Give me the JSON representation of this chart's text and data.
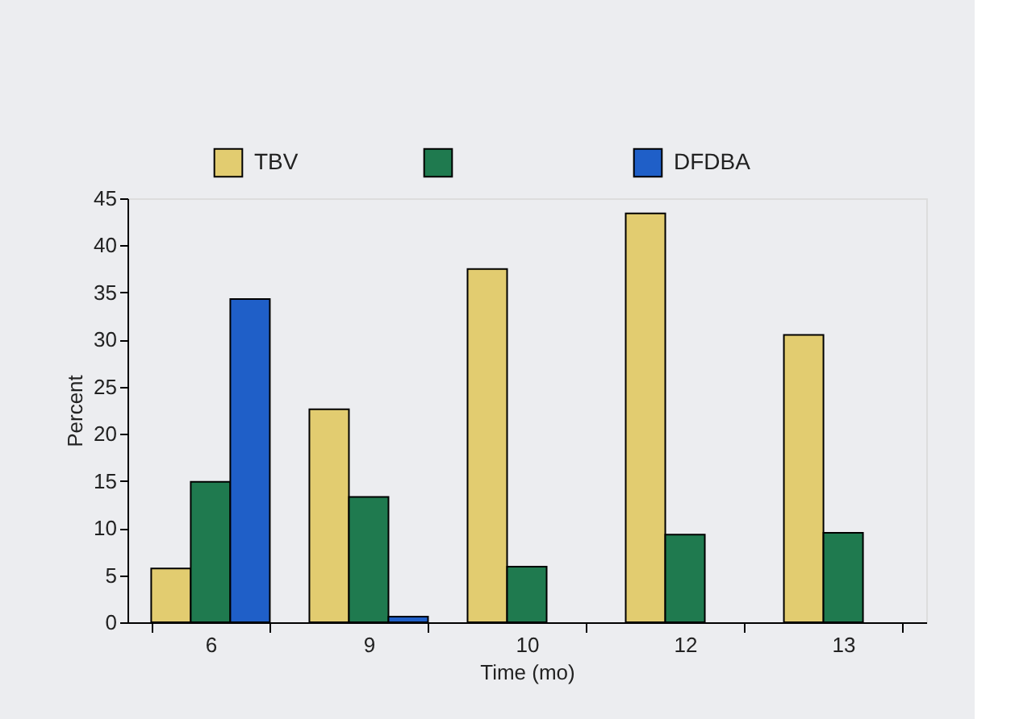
{
  "chart_data": {
    "type": "bar",
    "xlabel": "Time (mo)",
    "ylabel": "Percent",
    "categories": [
      "6",
      "9",
      "10",
      "12",
      "13"
    ],
    "series": [
      {
        "name": "TBV",
        "color": "#e2cc70",
        "values": [
          5.7,
          22.6,
          37.5,
          43.4,
          30.5
        ]
      },
      {
        "color": "#1f7a4f",
        "values": [
          14.9,
          13.3,
          5.9,
          9.3,
          9.5
        ]
      },
      {
        "name": "DFDBA",
        "color": "#1f5fc8",
        "values": [
          34.3,
          0.6,
          null,
          null,
          null
        ]
      }
    ],
    "ylim": [
      0,
      45
    ],
    "yticks": [
      0,
      5,
      10,
      15,
      20,
      25,
      30,
      35,
      40,
      45
    ],
    "grid": false,
    "legend": "top"
  }
}
